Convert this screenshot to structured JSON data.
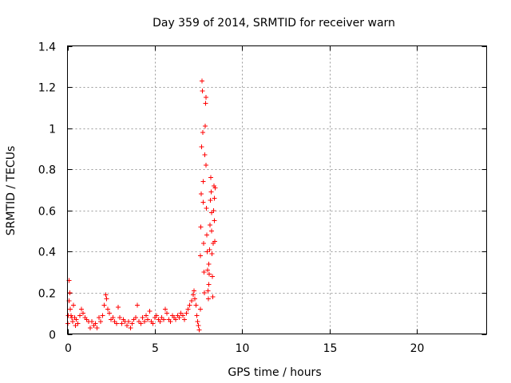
{
  "chart_data": {
    "type": "scatter",
    "title": "Day 359 of 2014, SRMTID for receiver warn",
    "xlabel": "GPS time / hours",
    "ylabel": "SRMTID / TECUs",
    "xlim": [
      0,
      24
    ],
    "ylim": [
      0,
      1.4
    ],
    "grid": true,
    "x_ticks": [
      0,
      5,
      10,
      15,
      20
    ],
    "x_tick_labels": [
      "0",
      "5",
      "10",
      "15",
      "20"
    ],
    "y_ticks": [
      0,
      0.2,
      0.4,
      0.6,
      0.8,
      1.0,
      1.2,
      1.4
    ],
    "y_tick_labels": [
      "0",
      "0.2",
      "0.4",
      "0.6",
      "0.8",
      "1",
      "1.2",
      "1.4"
    ],
    "series": [
      {
        "name": "SRMTID",
        "color": "#ff0000",
        "marker": "+",
        "points": [
          [
            0.02,
            0.05
          ],
          [
            0.05,
            0.09
          ],
          [
            0.08,
            0.16
          ],
          [
            0.1,
            0.26
          ],
          [
            0.13,
            0.2
          ],
          [
            0.16,
            0.12
          ],
          [
            0.2,
            0.09
          ],
          [
            0.25,
            0.08
          ],
          [
            0.3,
            0.06
          ],
          [
            0.35,
            0.14
          ],
          [
            0.4,
            0.08
          ],
          [
            0.45,
            0.04
          ],
          [
            0.5,
            0.07
          ],
          [
            0.6,
            0.05
          ],
          [
            0.7,
            0.09
          ],
          [
            0.8,
            0.12
          ],
          [
            0.9,
            0.1
          ],
          [
            1.0,
            0.08
          ],
          [
            1.1,
            0.07
          ],
          [
            1.2,
            0.06
          ],
          [
            1.3,
            0.03
          ],
          [
            1.4,
            0.06
          ],
          [
            1.5,
            0.04
          ],
          [
            1.6,
            0.05
          ],
          [
            1.7,
            0.03
          ],
          [
            1.8,
            0.08
          ],
          [
            1.9,
            0.06
          ],
          [
            2.0,
            0.09
          ],
          [
            2.1,
            0.14
          ],
          [
            2.2,
            0.19
          ],
          [
            2.25,
            0.17
          ],
          [
            2.3,
            0.12
          ],
          [
            2.4,
            0.1
          ],
          [
            2.5,
            0.07
          ],
          [
            2.6,
            0.08
          ],
          [
            2.7,
            0.06
          ],
          [
            2.8,
            0.05
          ],
          [
            2.9,
            0.13
          ],
          [
            3.0,
            0.08
          ],
          [
            3.1,
            0.05
          ],
          [
            3.2,
            0.07
          ],
          [
            3.3,
            0.06
          ],
          [
            3.4,
            0.04
          ],
          [
            3.5,
            0.06
          ],
          [
            3.6,
            0.03
          ],
          [
            3.7,
            0.05
          ],
          [
            3.8,
            0.07
          ],
          [
            3.9,
            0.08
          ],
          [
            4.0,
            0.14
          ],
          [
            4.1,
            0.06
          ],
          [
            4.2,
            0.05
          ],
          [
            4.3,
            0.08
          ],
          [
            4.4,
            0.06
          ],
          [
            4.5,
            0.09
          ],
          [
            4.6,
            0.07
          ],
          [
            4.7,
            0.11
          ],
          [
            4.8,
            0.06
          ],
          [
            4.9,
            0.05
          ],
          [
            5.0,
            0.08
          ],
          [
            5.1,
            0.09
          ],
          [
            5.2,
            0.07
          ],
          [
            5.3,
            0.06
          ],
          [
            5.4,
            0.08
          ],
          [
            5.5,
            0.07
          ],
          [
            5.6,
            0.12
          ],
          [
            5.7,
            0.1
          ],
          [
            5.8,
            0.07
          ],
          [
            5.9,
            0.06
          ],
          [
            6.0,
            0.09
          ],
          [
            6.1,
            0.08
          ],
          [
            6.2,
            0.07
          ],
          [
            6.3,
            0.09
          ],
          [
            6.4,
            0.08
          ],
          [
            6.5,
            0.1
          ],
          [
            6.6,
            0.09
          ],
          [
            6.7,
            0.07
          ],
          [
            6.8,
            0.1
          ],
          [
            6.9,
            0.12
          ],
          [
            7.0,
            0.14
          ],
          [
            7.1,
            0.16
          ],
          [
            7.2,
            0.19
          ],
          [
            7.25,
            0.21
          ],
          [
            7.3,
            0.17
          ],
          [
            7.35,
            0.14
          ],
          [
            7.4,
            0.09
          ],
          [
            7.45,
            0.06
          ],
          [
            7.5,
            0.04
          ],
          [
            7.55,
            0.02
          ],
          [
            7.6,
            0.12
          ],
          [
            7.62,
            0.38
          ],
          [
            7.64,
            0.52
          ],
          [
            7.66,
            0.68
          ],
          [
            7.68,
            0.91
          ],
          [
            7.7,
            1.23
          ],
          [
            7.72,
            1.18
          ],
          [
            7.74,
            0.98
          ],
          [
            7.76,
            0.74
          ],
          [
            7.78,
            0.64
          ],
          [
            7.8,
            0.44
          ],
          [
            7.82,
            0.3
          ],
          [
            7.84,
            0.2
          ],
          [
            7.86,
            0.87
          ],
          [
            7.88,
            1.01
          ],
          [
            7.9,
            1.12
          ],
          [
            7.92,
            1.15
          ],
          [
            7.94,
            0.82
          ],
          [
            7.96,
            0.61
          ],
          [
            7.98,
            0.48
          ],
          [
            8.0,
            0.4
          ],
          [
            8.02,
            0.31
          ],
          [
            8.04,
            0.21
          ],
          [
            8.06,
            0.17
          ],
          [
            8.08,
            0.24
          ],
          [
            8.1,
            0.34
          ],
          [
            8.12,
            0.29
          ],
          [
            8.14,
            0.41
          ],
          [
            8.16,
            0.53
          ],
          [
            8.18,
            0.65
          ],
          [
            8.2,
            0.76
          ],
          [
            8.22,
            0.69
          ],
          [
            8.24,
            0.59
          ],
          [
            8.26,
            0.5
          ],
          [
            8.28,
            0.39
          ],
          [
            8.3,
            0.28
          ],
          [
            8.32,
            0.18
          ],
          [
            8.34,
            0.44
          ],
          [
            8.36,
            0.6
          ],
          [
            8.38,
            0.72
          ],
          [
            8.4,
            0.66
          ],
          [
            8.42,
            0.55
          ],
          [
            8.44,
            0.45
          ],
          [
            8.46,
            0.71
          ]
        ]
      }
    ]
  }
}
